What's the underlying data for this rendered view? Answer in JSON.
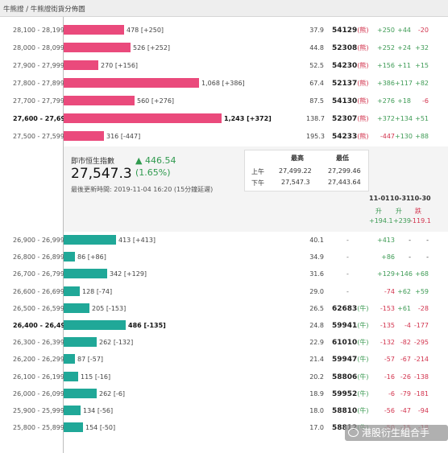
{
  "header": {
    "breadcrumb": "牛熊證 / 牛熊證街貨分佈圖"
  },
  "colors": {
    "bear": "#ea4a7c",
    "bull": "#20a898",
    "pos": "#3e9b55",
    "neg": "#d2334d"
  },
  "bear_rows": [
    {
      "range": "28,100 - 28,199",
      "label": "478 [+250]",
      "units": 478,
      "v": "37.9",
      "code": "54129",
      "tag": "(熊)",
      "c1": "+250",
      "c2": "+44",
      "c3": "-20"
    },
    {
      "range": "28,000 - 28,099",
      "label": "526 [+252]",
      "units": 526,
      "v": "44.8",
      "code": "52308",
      "tag": "(熊)",
      "c1": "+252",
      "c2": "+24",
      "c3": "+32"
    },
    {
      "range": "27,900 - 27,999",
      "label": "270 [+156]",
      "units": 270,
      "v": "52.5",
      "code": "54230",
      "tag": "(熊)",
      "c1": "+156",
      "c2": "+11",
      "c3": "+15"
    },
    {
      "range": "27,800 - 27,899",
      "label": "1,068 [+386]",
      "units": 1068,
      "v": "67.4",
      "code": "52137",
      "tag": "(熊)",
      "c1": "+386",
      "c2": "+117",
      "c3": "+82"
    },
    {
      "range": "27,700 - 27,799",
      "label": "560 [+276]",
      "units": 560,
      "v": "87.5",
      "code": "54130",
      "tag": "(熊)",
      "c1": "+276",
      "c2": "+18",
      "c3": "-6"
    },
    {
      "range": "27,600 - 27,699",
      "label": "1,243 [+372]",
      "units": 1243,
      "v": "138.7",
      "code": "52307",
      "tag": "(熊)",
      "c1": "+372",
      "c2": "+134",
      "c3": "+51",
      "bold": true
    },
    {
      "range": "27,500 - 27,599",
      "label": "316 [-447]",
      "units": 316,
      "v": "195.3",
      "code": "54233",
      "tag": "(熊)",
      "c1": "-447",
      "c2": "+130",
      "c3": "+88"
    }
  ],
  "panel": {
    "title": "即市恒生指數",
    "change": "▲ 446.54",
    "level": "27,547.3",
    "pct": "(1.65%)",
    "updated": "最後更新時間: 2019-11-04 16:20 (15分鐘延遲)",
    "high_label": "最高",
    "low_label": "最低",
    "am_label": "上午",
    "pm_label": "下午",
    "am_high": "27,499.22",
    "am_low": "27,299.46",
    "pm_high": "27,547.3",
    "pm_low": "27,443.64",
    "dates": [
      "11-01",
      "10-31",
      "10-30"
    ],
    "dirs": [
      "升",
      "升",
      "跌"
    ],
    "totals": [
      "+194.1",
      "+239",
      "-119.1"
    ]
  },
  "bull_rows": [
    {
      "range": "26,900 - 26,999",
      "label": "413 [+413]",
      "units": 413,
      "v": "40.1",
      "dash": "-",
      "c1": "+413",
      "c2": "-",
      "c3": "-"
    },
    {
      "range": "26,800 - 26,899",
      "label": "86 [+86]",
      "units": 86,
      "v": "34.9",
      "dash": "-",
      "c1": "+86",
      "c2": "-",
      "c3": "-"
    },
    {
      "range": "26,700 - 26,799",
      "label": "342 [+129]",
      "units": 342,
      "v": "31.6",
      "dash": "-",
      "c1": "+129",
      "c2": "+146",
      "c3": "+68"
    },
    {
      "range": "26,600 - 26,699",
      "label": "128 [-74]",
      "units": 128,
      "v": "29.0",
      "dash": "-",
      "c1": "-74",
      "c2": "+62",
      "c3": "+59"
    },
    {
      "range": "26,500 - 26,599",
      "label": "205 [-153]",
      "units": 205,
      "v": "26.5",
      "code": "62683",
      "tag": "(牛)",
      "c1": "-153",
      "c2": "+61",
      "c3": "-28"
    },
    {
      "range": "26,400 - 26,499",
      "label": "486 [-135]",
      "units": 486,
      "v": "24.8",
      "code": "59941",
      "tag": "(牛)",
      "c1": "-135",
      "c2": "-4",
      "c3": "-177",
      "bold": true
    },
    {
      "range": "26,300 - 26,399",
      "label": "262 [-132]",
      "units": 262,
      "v": "22.9",
      "code": "61010",
      "tag": "(牛)",
      "c1": "-132",
      "c2": "-82",
      "c3": "-295"
    },
    {
      "range": "26,200 - 26,299",
      "label": "87 [-57]",
      "units": 87,
      "v": "21.4",
      "code": "59947",
      "tag": "(牛)",
      "c1": "-57",
      "c2": "-67",
      "c3": "-214"
    },
    {
      "range": "26,100 - 26,199",
      "label": "115 [-16]",
      "units": 115,
      "v": "20.2",
      "code": "58806",
      "tag": "(牛)",
      "c1": "-16",
      "c2": "-26",
      "c3": "-138"
    },
    {
      "range": "26,000 - 26,099",
      "label": "262 [-6]",
      "units": 262,
      "v": "18.9",
      "code": "59952",
      "tag": "(牛)",
      "c1": "-6",
      "c2": "-79",
      "c3": "-181"
    },
    {
      "range": "25,900 - 25,999",
      "label": "134 [-56]",
      "units": 134,
      "v": "18.0",
      "code": "58810",
      "tag": "(牛)",
      "c1": "-56",
      "c2": "-47",
      "c3": "-94"
    },
    {
      "range": "25,800 - 25,899",
      "label": "154 [-50]",
      "units": 154,
      "v": "17.0",
      "code": "58812",
      "tag": "(牛)",
      "c1": "-50",
      "c2": "-15",
      "c3": "-18"
    }
  ],
  "watermark": {
    "text": "港股衍生組合手"
  }
}
